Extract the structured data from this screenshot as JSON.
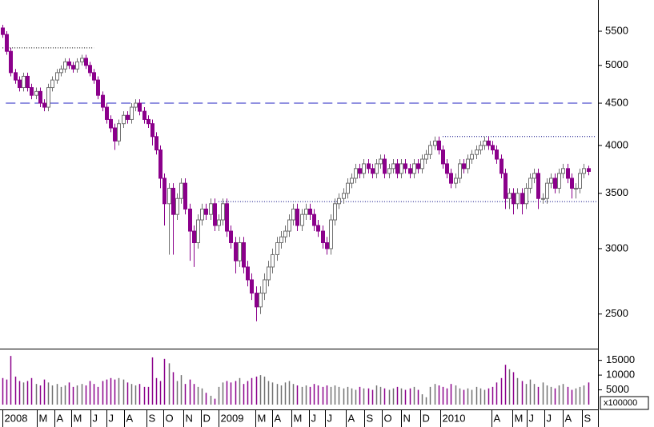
{
  "chart_data": {
    "type": "candlestick",
    "log_scale": true,
    "up_color": "#ffffff",
    "up_edge": "#707070",
    "down_color": "#8b008b",
    "xlim": [
      -0.6,
      143
    ],
    "xticks": [
      {
        "value": 0,
        "label": "2008"
      },
      {
        "value": 8.3,
        "label": "M"
      },
      {
        "value": 12.5,
        "label": "A"
      },
      {
        "value": 16.5,
        "label": "M"
      },
      {
        "value": 21.2,
        "label": "J"
      },
      {
        "value": 25,
        "label": "J"
      },
      {
        "value": 29.2,
        "label": "A"
      },
      {
        "value": 34.6,
        "label": "S"
      },
      {
        "value": 38.8,
        "label": "O"
      },
      {
        "value": 43.5,
        "label": "N"
      },
      {
        "value": 47.7,
        "label": "D"
      },
      {
        "value": 52.1,
        "label": "2009"
      },
      {
        "value": 60.8,
        "label": "M"
      },
      {
        "value": 65,
        "label": "A"
      },
      {
        "value": 69.6,
        "label": "M"
      },
      {
        "value": 73.8,
        "label": "J"
      },
      {
        "value": 77.7,
        "label": "J"
      },
      {
        "value": 82.7,
        "label": "A"
      },
      {
        "value": 87.1,
        "label": "S"
      },
      {
        "value": 91.3,
        "label": "O"
      },
      {
        "value": 96,
        "label": "N"
      },
      {
        "value": 100.6,
        "label": "D"
      },
      {
        "value": 105.4,
        "label": "2010"
      },
      {
        "value": 117.7,
        "label": "A"
      },
      {
        "value": 122.7,
        "label": "M"
      },
      {
        "value": 126.2,
        "label": "J"
      },
      {
        "value": 130.4,
        "label": "J"
      },
      {
        "value": 135,
        "label": "A"
      },
      {
        "value": 139.6,
        "label": "S"
      }
    ],
    "ylim": [
      2270,
      6000
    ],
    "yticks": [
      2500,
      3000,
      3500,
      4000,
      4500,
      5000,
      5500
    ],
    "open": [
      5550,
      5450,
      5200,
      4900,
      4800,
      4700,
      4850,
      4700,
      4600,
      4650,
      4500,
      4450,
      4700,
      4800,
      4900,
      4950,
      5050,
      5000,
      4950,
      5050,
      5100,
      5000,
      4900,
      4800,
      4600,
      4450,
      4300,
      4200,
      4050,
      4250,
      4350,
      4300,
      4450,
      4500,
      4400,
      4300,
      4250,
      4100,
      3950,
      3650,
      3400,
      3550,
      3300,
      3450,
      3600,
      3350,
      3150,
      3050,
      3250,
      3350,
      3300,
      3400,
      3200,
      3250,
      3400,
      3150,
      3050,
      2900,
      3050,
      2850,
      2750,
      2650,
      2550,
      2650,
      2750,
      2850,
      2950,
      3050,
      3100,
      3150,
      3250,
      3350,
      3200,
      3300,
      3350,
      3300,
      3200,
      3150,
      3050,
      3000,
      3250,
      3400,
      3450,
      3500,
      3600,
      3650,
      3750,
      3700,
      3800,
      3750,
      3700,
      3800,
      3850,
      3700,
      3750,
      3800,
      3700,
      3800,
      3750,
      3700,
      3800,
      3750,
      3850,
      3900,
      4000,
      4050,
      3950,
      3800,
      3700,
      3600,
      3650,
      3800,
      3750,
      3850,
      3900,
      3950,
      4000,
      4050,
      4000,
      3950,
      3850,
      3700,
      3450,
      3500,
      3400,
      3500,
      3400,
      3550,
      3650,
      3700,
      3450,
      3450,
      3600,
      3650,
      3550,
      3700,
      3750,
      3650,
      3550,
      3550,
      3700,
      3750
    ],
    "high": [
      5600,
      5500,
      5250,
      4950,
      4850,
      4900,
      4900,
      4750,
      4700,
      4700,
      4550,
      4750,
      4850,
      4950,
      5000,
      5100,
      5100,
      5050,
      5100,
      5150,
      5150,
      5050,
      4950,
      4850,
      4650,
      4500,
      4350,
      4250,
      4300,
      4400,
      4400,
      4500,
      4550,
      4550,
      4450,
      4350,
      4300,
      4150,
      4000,
      3700,
      3600,
      3600,
      3500,
      3650,
      3650,
      3400,
      3200,
      3300,
      3400,
      3400,
      3450,
      3450,
      3300,
      3450,
      3450,
      3200,
      3100,
      3100,
      3100,
      2900,
      2800,
      2700,
      2700,
      2800,
      2900,
      3000,
      3100,
      3150,
      3200,
      3300,
      3400,
      3400,
      3350,
      3400,
      3400,
      3350,
      3250,
      3200,
      3100,
      3300,
      3450,
      3500,
      3550,
      3650,
      3700,
      3800,
      3800,
      3850,
      3850,
      3800,
      3850,
      3900,
      3900,
      3800,
      3850,
      3850,
      3850,
      3850,
      3800,
      3850,
      3850,
      3900,
      3950,
      4050,
      4100,
      4100,
      4000,
      3850,
      3750,
      3700,
      3850,
      3850,
      3900,
      3950,
      4000,
      4050,
      4100,
      4100,
      4050,
      4000,
      3900,
      3750,
      3550,
      3550,
      3550,
      3550,
      3600,
      3700,
      3750,
      3750,
      3500,
      3650,
      3700,
      3700,
      3750,
      3800,
      3800,
      3700,
      3600,
      3750,
      3800,
      3780
    ],
    "low": [
      5400,
      5150,
      4850,
      4750,
      4650,
      4650,
      4650,
      4550,
      4550,
      4450,
      4400,
      4400,
      4650,
      4750,
      4850,
      4900,
      4950,
      4900,
      4900,
      5000,
      4950,
      4850,
      4750,
      4550,
      4400,
      4250,
      4150,
      3950,
      4000,
      4200,
      4250,
      4250,
      4400,
      4350,
      4250,
      4200,
      4000,
      3900,
      3550,
      3200,
      2950,
      2950,
      3250,
      3400,
      3300,
      2900,
      2850,
      3000,
      3200,
      3250,
      3250,
      3150,
      3150,
      3200,
      3100,
      3000,
      2800,
      2850,
      2800,
      2700,
      2600,
      2450,
      2500,
      2600,
      2700,
      2800,
      2900,
      3000,
      3050,
      3100,
      3200,
      3150,
      3150,
      3250,
      3250,
      3150,
      3100,
      3000,
      2950,
      2950,
      3200,
      3350,
      3400,
      3450,
      3550,
      3600,
      3650,
      3650,
      3700,
      3650,
      3650,
      3750,
      3650,
      3650,
      3700,
      3650,
      3650,
      3700,
      3650,
      3650,
      3700,
      3700,
      3800,
      3850,
      3950,
      3900,
      3750,
      3650,
      3550,
      3550,
      3600,
      3700,
      3700,
      3800,
      3850,
      3900,
      3950,
      3950,
      3900,
      3800,
      3650,
      3350,
      3350,
      3300,
      3350,
      3300,
      3350,
      3500,
      3600,
      3350,
      3400,
      3400,
      3550,
      3500,
      3500,
      3650,
      3600,
      3450,
      3450,
      3500,
      3650,
      3680
    ],
    "close": [
      5450,
      5200,
      4900,
      4800,
      4700,
      4850,
      4700,
      4600,
      4650,
      4500,
      4450,
      4700,
      4800,
      4900,
      4950,
      5050,
      5000,
      4950,
      5050,
      5100,
      5000,
      4900,
      4800,
      4600,
      4450,
      4300,
      4200,
      4050,
      4250,
      4350,
      4300,
      4450,
      4500,
      4400,
      4300,
      4250,
      4100,
      3950,
      3650,
      3400,
      3550,
      3300,
      3450,
      3600,
      3350,
      3150,
      3050,
      3250,
      3350,
      3300,
      3400,
      3200,
      3250,
      3400,
      3150,
      3050,
      2900,
      3050,
      2850,
      2750,
      2650,
      2550,
      2650,
      2750,
      2850,
      2950,
      3050,
      3100,
      3150,
      3250,
      3350,
      3200,
      3300,
      3350,
      3300,
      3200,
      3150,
      3050,
      3000,
      3250,
      3400,
      3450,
      3500,
      3600,
      3650,
      3750,
      3700,
      3800,
      3750,
      3700,
      3800,
      3850,
      3700,
      3750,
      3800,
      3700,
      3800,
      3750,
      3700,
      3800,
      3750,
      3850,
      3900,
      4000,
      4050,
      3950,
      3800,
      3700,
      3600,
      3650,
      3800,
      3750,
      3850,
      3900,
      3950,
      4000,
      4050,
      4000,
      3950,
      3850,
      3700,
      3450,
      3500,
      3400,
      3500,
      3400,
      3550,
      3650,
      3700,
      3450,
      3450,
      3600,
      3650,
      3550,
      3700,
      3750,
      3650,
      3550,
      3550,
      3700,
      3750,
      3720
    ],
    "volume": [
      9000,
      8500,
      16500,
      9500,
      8000,
      7500,
      8000,
      9000,
      7000,
      6500,
      8500,
      7500,
      6500,
      7000,
      6000,
      6500,
      7500,
      6000,
      6500,
      7000,
      6500,
      8000,
      7000,
      6000,
      8000,
      8500,
      9000,
      8500,
      9000,
      8500,
      7500,
      7000,
      6500,
      7000,
      6000,
      6000,
      16000,
      9000,
      8000,
      15500,
      14000,
      11000,
      8000,
      10000,
      7000,
      8500,
      7000,
      6000,
      5500,
      4000,
      3000,
      2000,
      6000,
      7500,
      8000,
      7500,
      8000,
      9000,
      7000,
      8000,
      9000,
      9500,
      10000,
      9500,
      8000,
      7500,
      7000,
      6500,
      7500,
      8000,
      7000,
      6500,
      6000,
      6500,
      6000,
      7000,
      6500,
      6000,
      6500,
      6000,
      6500,
      6000,
      5500,
      6000,
      5500,
      5000,
      6000,
      5500,
      5500,
      5000,
      6500,
      6000,
      5500,
      5000,
      5500,
      6000,
      5500,
      5000,
      5500,
      6000,
      5000,
      3500,
      2500,
      6000,
      7000,
      6500,
      6000,
      5500,
      7000,
      6500,
      5500,
      5000,
      5500,
      5000,
      6000,
      5500,
      5000,
      5500,
      6000,
      7500,
      9000,
      13500,
      12000,
      11000,
      9000,
      8000,
      7000,
      8500,
      7000,
      6000,
      7500,
      6500,
      6000,
      5500,
      6500,
      7000,
      6000,
      5000,
      5500,
      6000,
      6500,
      7500
    ],
    "volume_ylim": [
      0,
      18700
    ],
    "volume_ticks": [
      5000,
      10000,
      15000
    ],
    "volume_unit": "x100000",
    "lines": [
      {
        "value": 5250,
        "x": [
          0,
          22
        ],
        "style": "dotted",
        "color": "#000000"
      },
      {
        "value": 4500,
        "x": [
          0.8,
          143
        ],
        "style": "dashed",
        "color": "#2020c0"
      },
      {
        "value": 4100,
        "x": [
          106,
          143
        ],
        "style": "dotted",
        "color": "#000080"
      },
      {
        "value": 3420,
        "x": [
          52,
          143
        ],
        "style": "dotted",
        "color": "#000080"
      }
    ]
  }
}
